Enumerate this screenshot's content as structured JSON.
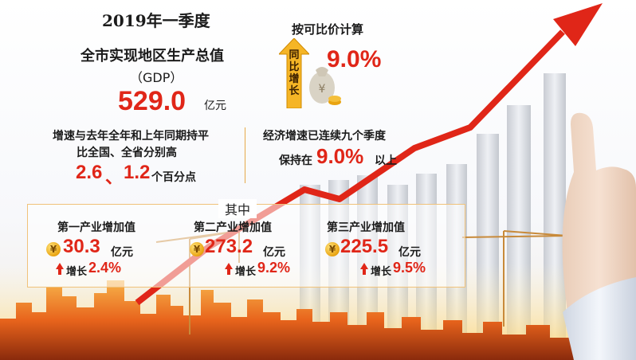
{
  "header": {
    "year_quarter": "2019年一季度",
    "subtitle": "全市实现地区生产总值",
    "paren_label": "（GDP）",
    "gdp_value": "529.0",
    "gdp_unit": "亿元"
  },
  "growth": {
    "calc_note": "按可比价计算",
    "vertical_label": "同比增长",
    "rate": "9.0%"
  },
  "compare": {
    "line1": "增速与去年全年和上年同期持平",
    "line2": "比全国、全省分别高",
    "value_a": "2.6",
    "separator": "、",
    "value_b": "1.2",
    "unit": "个百分点"
  },
  "streak": {
    "line1": "经济增速已连续九个季度",
    "prefix": "保持在",
    "value": "9.0%",
    "suffix": "以上"
  },
  "breakdown": {
    "label": "其中",
    "coin_glyph": "¥",
    "growth_prefix": "增长",
    "items": [
      {
        "title": "第一产业增加值",
        "value": "30.3",
        "unit": "亿元",
        "growth": "2.4%"
      },
      {
        "title": "第二产业增加值",
        "value": "273.2",
        "unit": "亿元",
        "growth": "9.2%"
      },
      {
        "title": "第三产业增加值",
        "value": "225.5",
        "unit": "亿元",
        "growth": "9.5%"
      }
    ]
  },
  "colors": {
    "accent_red": "#e02618",
    "gold": "#e9a411",
    "border": "#f0c27a"
  }
}
